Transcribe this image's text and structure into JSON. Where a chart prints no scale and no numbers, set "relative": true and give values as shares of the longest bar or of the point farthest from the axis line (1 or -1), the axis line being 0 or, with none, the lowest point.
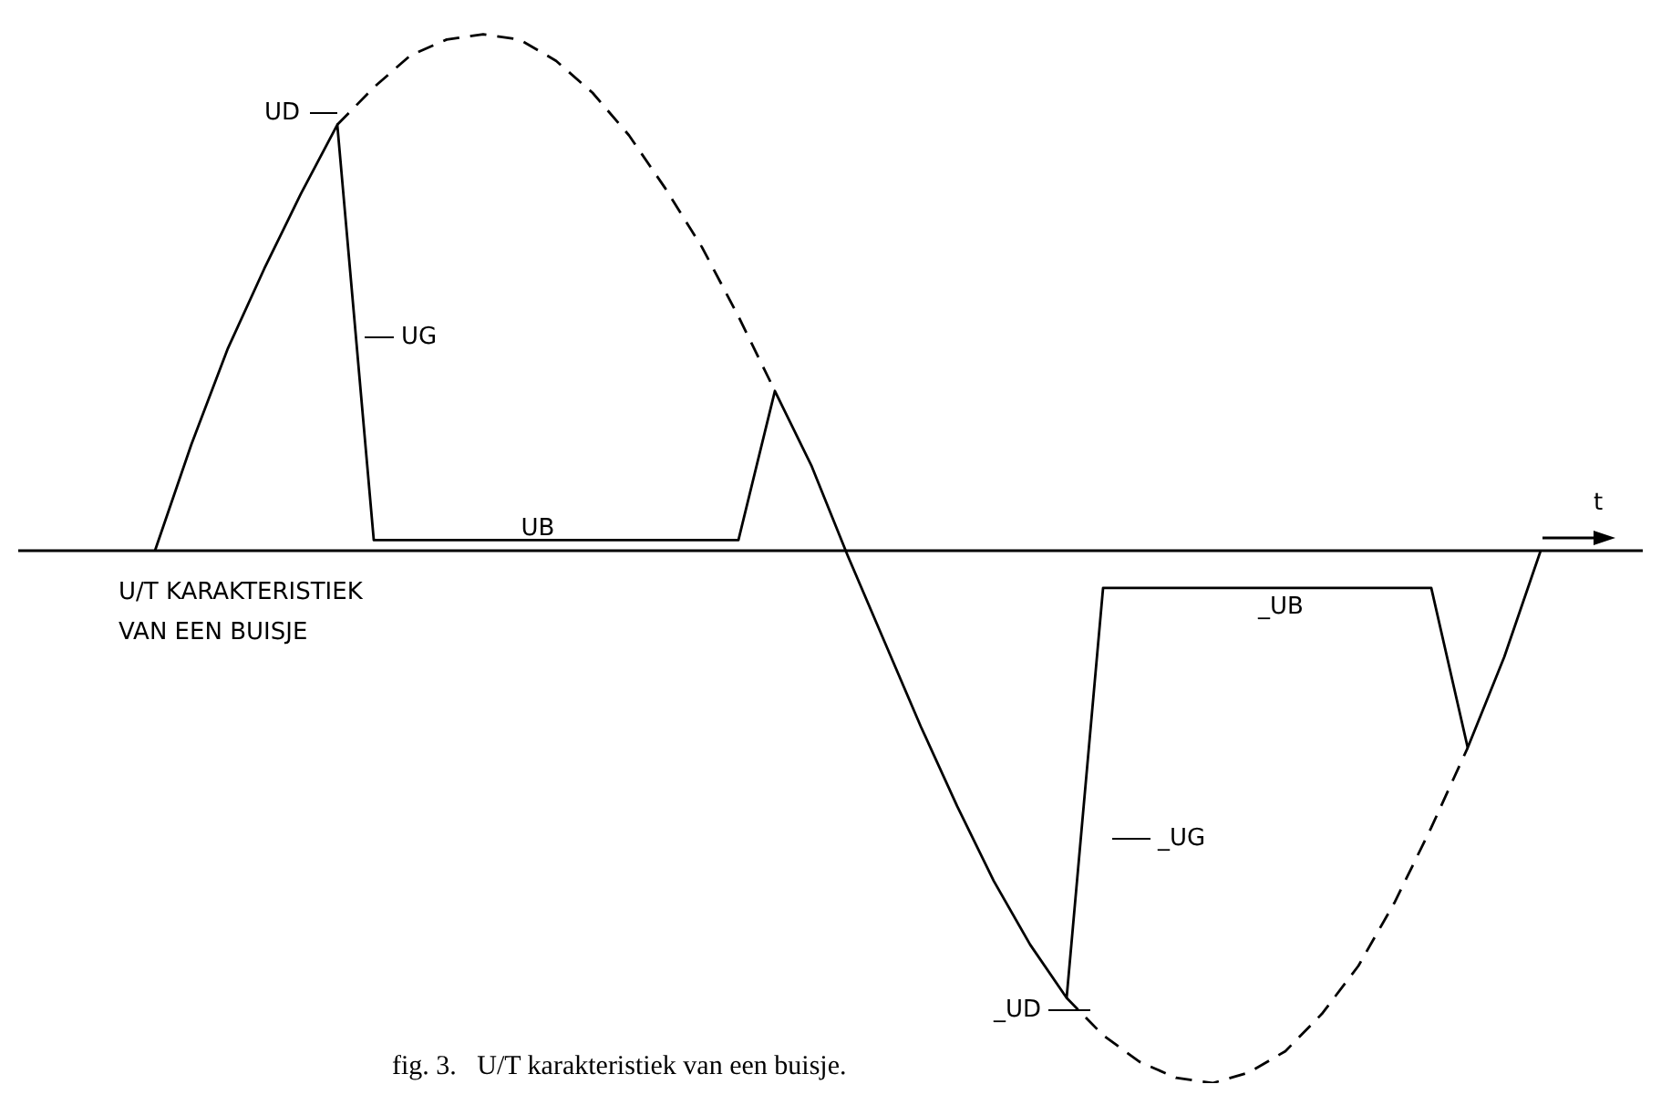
{
  "chart_data": {
    "type": "line",
    "relative": true,
    "legend": false,
    "marker": "none",
    "categories": [
      null,
      null,
      null,
      null,
      null,
      null,
      null,
      null,
      null,
      null,
      null,
      null,
      null,
      null,
      null,
      null,
      null,
      null,
      null,
      null,
      null,
      null,
      null,
      null,
      null,
      null,
      null,
      null,
      null,
      null,
      null,
      null,
      null,
      null,
      null,
      null,
      null,
      null,
      null
    ],
    "series": [
      {
        "color": "#000000",
        "line_style": "dashed",
        "values": [
          null,
          null,
          null,
          null,
          null,
          0.8,
          0.87,
          0.93,
          0.96,
          0.97,
          0.96,
          0.92,
          0.86,
          0.78,
          0.68,
          0.57,
          0.44,
          0.3,
          null,
          null,
          null,
          null,
          null,
          null,
          null,
          -0.84,
          -0.91,
          -0.96,
          -0.99,
          -1.0,
          -0.98,
          -0.94,
          -0.87,
          -0.78,
          -0.66,
          -0.52,
          -0.37,
          null,
          null
        ]
      },
      {
        "color": "#000000",
        "line_style": "solid",
        "values": [
          0,
          0.2,
          0.38,
          0.53,
          0.67,
          0.8,
          0.02,
          0.02,
          0.02,
          0.02,
          0.02,
          0.02,
          0.02,
          0.02,
          0.02,
          0.02,
          0.02,
          0.3,
          0.16,
          -0.01,
          -0.17,
          -0.33,
          -0.48,
          -0.62,
          -0.74,
          -0.84,
          -0.07,
          -0.07,
          -0.07,
          -0.07,
          -0.07,
          -0.07,
          -0.07,
          -0.07,
          -0.07,
          -0.07,
          -0.37,
          -0.2,
          0
        ]
      }
    ],
    "annotations": [
      "UD",
      "UG",
      "UB",
      "U/T KARAKTERISTIEK\nVAN EEN BUISJE",
      "_UD",
      "_UG",
      "_UB",
      "t",
      "fig. 3.   U/T karakteristiek van een buisje."
    ]
  }
}
